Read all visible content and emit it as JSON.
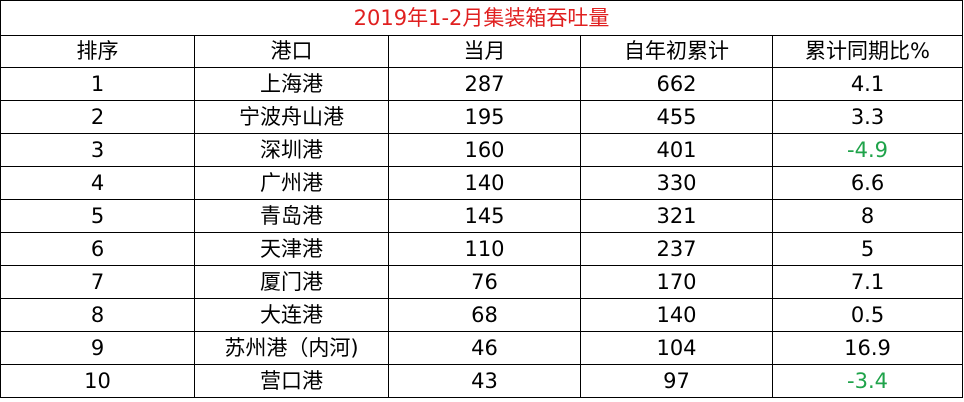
{
  "title": "2019年1-2月集装箱吞吐量",
  "columns": [
    "排序",
    "港口",
    "当月",
    "自年初累计",
    "累计同期比%"
  ],
  "rows": [
    {
      "rank": "1",
      "port": "上海港",
      "month": "287",
      "ytd": "662",
      "yoy": "4.1"
    },
    {
      "rank": "2",
      "port": "宁波舟山港",
      "month": "195",
      "ytd": "455",
      "yoy": "3.3"
    },
    {
      "rank": "3",
      "port": "深圳港",
      "month": "160",
      "ytd": "401",
      "yoy": "-4.9"
    },
    {
      "rank": "4",
      "port": "广州港",
      "month": "140",
      "ytd": "330",
      "yoy": "6.6"
    },
    {
      "rank": "5",
      "port": "青岛港",
      "month": "145",
      "ytd": "321",
      "yoy": "8"
    },
    {
      "rank": "6",
      "port": "天津港",
      "month": "110",
      "ytd": "237",
      "yoy": "5"
    },
    {
      "rank": "7",
      "port": "厦门港",
      "month": "76",
      "ytd": "170",
      "yoy": "7.1"
    },
    {
      "rank": "8",
      "port": "大连港",
      "month": "68",
      "ytd": "140",
      "yoy": "0.5"
    },
    {
      "rank": "9",
      "port": "苏州港（内河)",
      "month": "46",
      "ytd": "104",
      "yoy": "16.9"
    },
    {
      "rank": "10",
      "port": "营口港",
      "month": "43",
      "ytd": "97",
      "yoy": "-3.4"
    }
  ],
  "colors": {
    "title": "#e02020",
    "negative": "#1fa34a",
    "border": "#000000"
  }
}
